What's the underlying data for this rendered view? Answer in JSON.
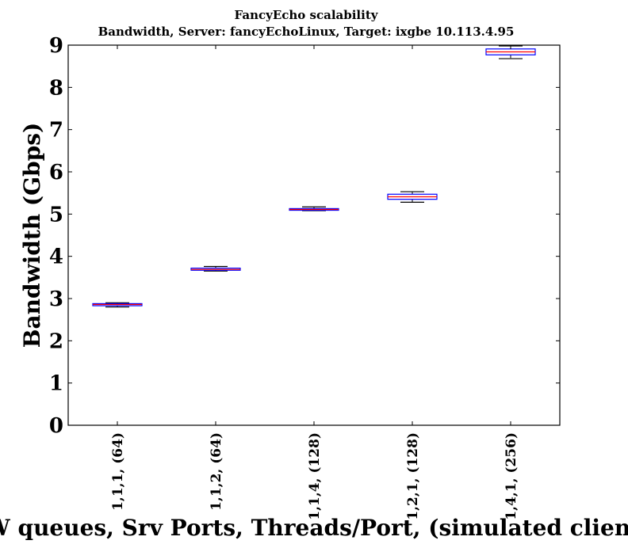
{
  "chart_data": {
    "type": "boxplot",
    "title": "FancyEcho scalability",
    "subtitle": "Bandwidth, Server: fancyEchoLinux, Target: ixgbe 10.113.4.95",
    "xlabel": "HW queues, Srv Ports, Threads/Port, (simulated clients)",
    "ylabel": "Bandwidth (Gbps)",
    "ylim": [
      0,
      9
    ],
    "yticks": [
      0,
      1,
      2,
      3,
      4,
      5,
      6,
      7,
      8,
      9
    ],
    "grid": false,
    "categories": [
      "1,1,1, (64)",
      "1,1,2, (64)",
      "1,1,4, (128)",
      "1,2,1, (128)",
      "1,4,1, (256)"
    ],
    "boxes": [
      {
        "whisker_low": 2.8,
        "q1": 2.83,
        "median": 2.86,
        "q3": 2.88,
        "whisker_high": 2.9
      },
      {
        "whisker_low": 3.65,
        "q1": 3.67,
        "median": 3.69,
        "q3": 3.72,
        "whisker_high": 3.76
      },
      {
        "whisker_low": 5.08,
        "q1": 5.09,
        "median": 5.11,
        "q3": 5.13,
        "whisker_high": 5.17
      },
      {
        "whisker_low": 5.28,
        "q1": 5.35,
        "median": 5.41,
        "q3": 5.47,
        "whisker_high": 5.53
      },
      {
        "whisker_low": 8.68,
        "q1": 8.77,
        "median": 8.84,
        "q3": 8.91,
        "whisker_high": 8.98
      }
    ],
    "colors": {
      "box": "#0000ff",
      "median": "#ff0000",
      "whisker": "#000000",
      "axes": "#000000"
    }
  }
}
